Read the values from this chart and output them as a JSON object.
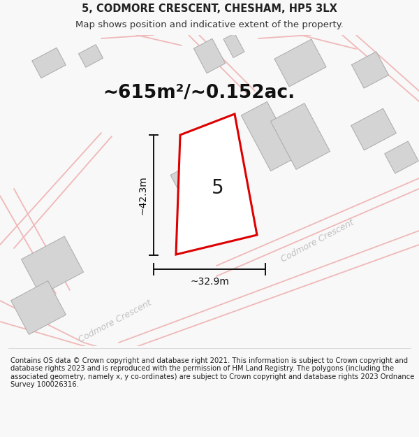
{
  "title_line1": "5, CODMORE CRESCENT, CHESHAM, HP5 3LX",
  "title_line2": "Map shows position and indicative extent of the property.",
  "area_label": "~615m²/~0.152ac.",
  "property_number": "5",
  "dim_vertical": "~42.3m",
  "dim_horizontal": "~32.9m",
  "street_label_1": "Codmore Crescent",
  "street_label_2": "Codmore Crescent",
  "footer_text": "Contains OS data © Crown copyright and database right 2021. This information is subject to Crown copyright and database rights 2023 and is reproduced with the permission of HM Land Registry. The polygons (including the associated geometry, namely x, y co-ordinates) are subject to Crown copyright and database rights 2023 Ordnance Survey 100026316.",
  "bg_color": "#f8f8f8",
  "map_bg_color": "#f0f0f0",
  "road_color": "#f0b8b8",
  "building_color": "#d4d4d4",
  "property_outline_color": "#dd0000",
  "property_fill_color": "#ffffff",
  "dim_line_color": "#111111",
  "title_fontsize": 10.5,
  "subtitle_fontsize": 9.5,
  "area_fontsize": 19,
  "number_fontsize": 20,
  "dim_fontsize": 10,
  "footer_fontsize": 7.2,
  "street_fontsize": 9
}
